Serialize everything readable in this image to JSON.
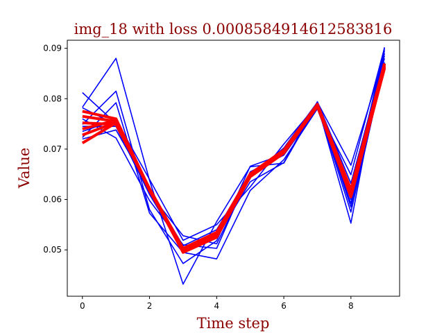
{
  "chart_data": {
    "type": "line",
    "title": "img_18 with loss 0.0008584914612583816",
    "xlabel": "Time step",
    "ylabel": "Value",
    "xlim": [
      -0.45,
      9.45
    ],
    "ylim": [
      0.0408,
      0.0916
    ],
    "x_ticks": [
      0,
      2,
      4,
      6,
      8
    ],
    "x_tick_labels": [
      "0",
      "2",
      "4",
      "6",
      "8"
    ],
    "y_ticks": [
      0.05,
      0.06,
      0.07,
      0.08,
      0.09
    ],
    "y_tick_labels": [
      "0.05",
      "0.06",
      "0.07",
      "0.08",
      "0.09"
    ],
    "grid": false,
    "x": [
      0,
      1,
      2,
      3,
      4,
      5,
      6,
      7,
      8,
      9
    ],
    "series": [
      {
        "group": "blue",
        "color": "#0000ff",
        "values": [
          0.0812,
          0.0751,
          0.0625,
          0.0503,
          0.053,
          0.0646,
          0.0697,
          0.079,
          0.0612,
          0.0898
        ]
      },
      {
        "group": "blue",
        "color": "#0000ff",
        "values": [
          0.0783,
          0.088,
          0.0638,
          0.0432,
          0.0556,
          0.0665,
          0.0672,
          0.0788,
          0.0553,
          0.0902
        ]
      },
      {
        "group": "blue",
        "color": "#0000ff",
        "values": [
          0.0749,
          0.0815,
          0.058,
          0.0473,
          0.0518,
          0.0666,
          0.069,
          0.0785,
          0.0592,
          0.0895
        ]
      },
      {
        "group": "blue",
        "color": "#0000ff",
        "values": [
          0.0723,
          0.0792,
          0.0573,
          0.0495,
          0.0482,
          0.0618,
          0.0679,
          0.078,
          0.06,
          0.089
        ]
      },
      {
        "group": "blue",
        "color": "#0000ff",
        "values": [
          0.0782,
          0.0748,
          0.0612,
          0.0528,
          0.0512,
          0.0648,
          0.0702,
          0.0793,
          0.0668,
          0.0885
        ]
      },
      {
        "group": "blue",
        "color": "#0000ff",
        "values": [
          0.0735,
          0.0758,
          0.064,
          0.0519,
          0.055,
          0.0625,
          0.071,
          0.0789,
          0.0585,
          0.0872
        ]
      },
      {
        "group": "blue",
        "color": "#0000ff",
        "values": [
          0.076,
          0.0722,
          0.0598,
          0.051,
          0.0503,
          0.0655,
          0.0688,
          0.0781,
          0.0649,
          0.0901
        ]
      },
      {
        "group": "blue",
        "color": "#0000ff",
        "values": [
          0.0745,
          0.0745,
          0.061,
          0.05,
          0.0525,
          0.0635,
          0.0673,
          0.0794,
          0.0632,
          0.088
        ]
      },
      {
        "group": "blue",
        "color": "#0000ff",
        "values": [
          0.072,
          0.0738,
          0.0621,
          0.0508,
          0.054,
          0.0652,
          0.0694,
          0.0786,
          0.0575,
          0.0868
        ]
      },
      {
        "group": "red",
        "color": "#ff0000",
        "values": [
          0.0712,
          0.0752,
          0.062,
          0.0495,
          0.0525,
          0.0645,
          0.0692,
          0.0785,
          0.061,
          0.086
        ]
      },
      {
        "group": "red",
        "color": "#ff0000",
        "values": [
          0.074,
          0.0757,
          0.0618,
          0.05,
          0.053,
          0.0648,
          0.0695,
          0.0787,
          0.0615,
          0.0865
        ]
      },
      {
        "group": "red",
        "color": "#ff0000",
        "values": [
          0.0752,
          0.0749,
          0.0622,
          0.0502,
          0.0532,
          0.065,
          0.0697,
          0.0788,
          0.062,
          0.087
        ]
      },
      {
        "group": "red",
        "color": "#ff0000",
        "values": [
          0.0765,
          0.0755,
          0.0619,
          0.0498,
          0.0528,
          0.0646,
          0.0693,
          0.0786,
          0.0605,
          0.0862
        ]
      },
      {
        "group": "red",
        "color": "#ff0000",
        "values": [
          0.0775,
          0.076,
          0.0621,
          0.0503,
          0.0535,
          0.0651,
          0.0698,
          0.0789,
          0.0618,
          0.0868
        ]
      },
      {
        "group": "red",
        "color": "#ff0000",
        "values": [
          0.0728,
          0.0753,
          0.062,
          0.0499,
          0.0527,
          0.0647,
          0.0694,
          0.0786,
          0.0612,
          0.0863
        ]
      }
    ]
  }
}
